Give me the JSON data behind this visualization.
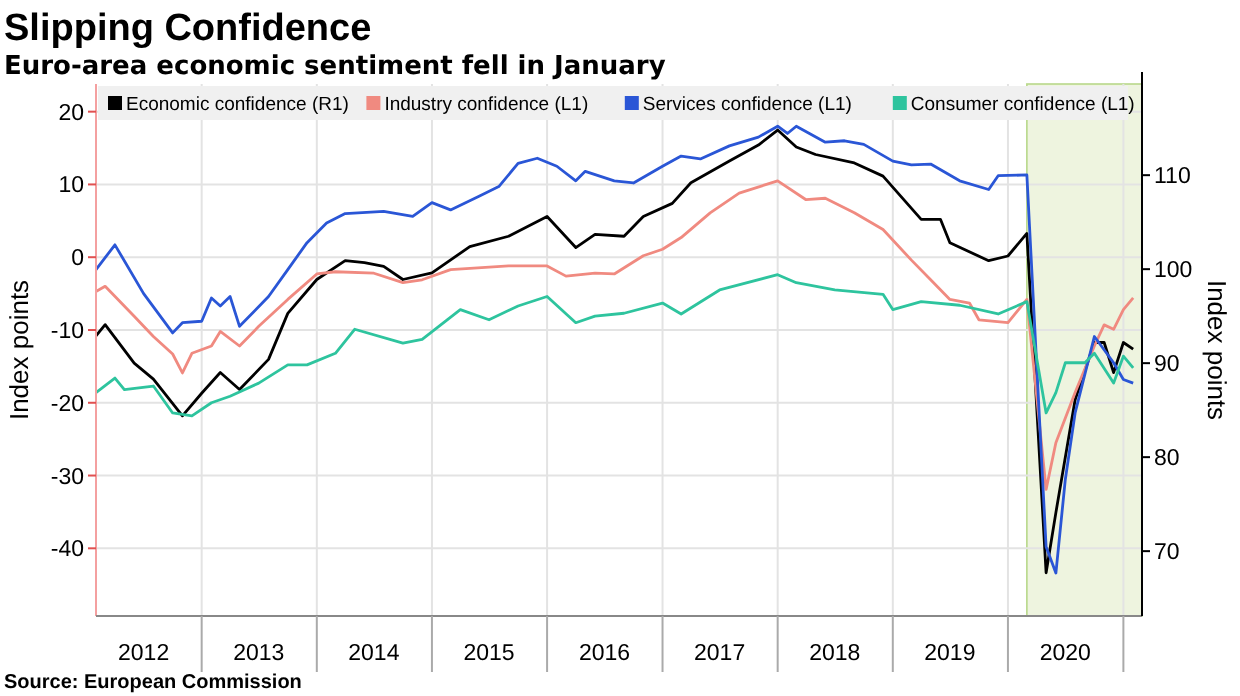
{
  "chart_data": {
    "type": "line",
    "title": "Slipping Confidence",
    "subtitle": "Euro-area economic sentiment fell in January",
    "ylabel": "Index points",
    "y2label": "Index points",
    "annotations": [
      "Source: European Commission"
    ],
    "xlim": [
      "2012-02-01",
      "2021-03-01"
    ],
    "xticks": [
      {
        "value": "2012-07-01",
        "label": "2012"
      },
      {
        "value": "2013-07-01",
        "label": "2013"
      },
      {
        "value": "2014-07-01",
        "label": "2014"
      },
      {
        "value": "2015-07-01",
        "label": "2015"
      },
      {
        "value": "2016-07-01",
        "label": "2016"
      },
      {
        "value": "2017-07-01",
        "label": "2017"
      },
      {
        "value": "2018-07-01",
        "label": "2018"
      },
      {
        "value": "2019-07-01",
        "label": "2019"
      },
      {
        "value": "2020-07-01",
        "label": "2020"
      }
    ],
    "ylim": [
      -49.3,
      23.8
    ],
    "yticks": [
      -40,
      -30,
      -20,
      -10,
      0,
      10,
      20
    ],
    "y2lim": [
      63.1,
      119.7
    ],
    "y2ticks": [
      70,
      80,
      90,
      100,
      110
    ],
    "grid": true,
    "legend": "top",
    "marker": "none",
    "line_style": "solid",
    "bands": [
      {
        "axis": "x",
        "from": "2020-03-01",
        "to": "2021-03-01",
        "color": "#eef4df"
      }
    ],
    "series": [
      {
        "name": "Economic confidence (R1)",
        "color": "#000000",
        "axis": "y2",
        "x": [
          "2012-02",
          "2012-03",
          "2012-06",
          "2012-08",
          "2012-11",
          "2013-01",
          "2013-03",
          "2013-05",
          "2013-08",
          "2013-10",
          "2014-01",
          "2014-04",
          "2014-06",
          "2014-08",
          "2014-10",
          "2015-01",
          "2015-05",
          "2015-09",
          "2016-01",
          "2016-04",
          "2016-06",
          "2016-09",
          "2016-11",
          "2017-02",
          "2017-04",
          "2017-08",
          "2017-11",
          "2018-01",
          "2018-03",
          "2018-05",
          "2018-09",
          "2018-12",
          "2019-04",
          "2019-06",
          "2019-07",
          "2019-11",
          "2020-01",
          "2020-03",
          "2020-05",
          "2020-06",
          "2020-08",
          "2020-10",
          "2020-11",
          "2020-12",
          "2021-01",
          "2021-02"
        ],
        "values": [
          92.9,
          94.1,
          90,
          88.3,
          84.4,
          86.8,
          89,
          87.2,
          90.4,
          95.3,
          98.9,
          100.9,
          100.7,
          100.3,
          98.9,
          99.6,
          102.4,
          103.5,
          105.6,
          102.3,
          103.7,
          103.5,
          105.6,
          107,
          109.2,
          111.5,
          113.2,
          114.8,
          113,
          112.2,
          111.3,
          109.9,
          105.3,
          105.3,
          102.8,
          100.9,
          101.4,
          103.8,
          67.7,
          74.1,
          86.1,
          92.2,
          92.2,
          89,
          92.2,
          91.5
        ]
      },
      {
        "name": "Industry confidence (L1)",
        "color": "#f08a80",
        "x": [
          "2012-02",
          "2012-03",
          "2012-06",
          "2012-08",
          "2012-10",
          "2012-11",
          "2012-12",
          "2013-02",
          "2013-03",
          "2013-05",
          "2013-07",
          "2013-10",
          "2014-01",
          "2014-03",
          "2014-07",
          "2014-10",
          "2014-12",
          "2015-03",
          "2015-09",
          "2016-01",
          "2016-03",
          "2016-06",
          "2016-08",
          "2016-11",
          "2017-01",
          "2017-03",
          "2017-06",
          "2017-09",
          "2018-01",
          "2018-04",
          "2018-06",
          "2018-09",
          "2018-12",
          "2019-03",
          "2019-05",
          "2019-07",
          "2019-09",
          "2019-10",
          "2020-01",
          "2020-03",
          "2020-05",
          "2020-06",
          "2020-08",
          "2020-10",
          "2020-11",
          "2020-12",
          "2021-01",
          "2021-02"
        ],
        "values": [
          -4.7,
          -4,
          -8.1,
          -10.9,
          -13.3,
          -15.9,
          -13.2,
          -12.2,
          -10.2,
          -12.2,
          -9.5,
          -5.8,
          -2.3,
          -2,
          -2.2,
          -3.5,
          -3.1,
          -1.7,
          -1.2,
          -1.2,
          -2.6,
          -2.2,
          -2.3,
          0.2,
          1.1,
          2.7,
          6.1,
          8.8,
          10.5,
          7.9,
          8.1,
          6.1,
          3.8,
          -0.4,
          -3.1,
          -5.8,
          -6.3,
          -8.6,
          -9,
          -5.8,
          -31.9,
          -25.5,
          -18.6,
          -12.2,
          -9.3,
          -9.9,
          -7.2,
          -5.6
        ]
      },
      {
        "name": "Services confidence  (L1)",
        "color": "#2a56d6",
        "x": [
          "2012-02",
          "2012-04",
          "2012-07",
          "2012-10",
          "2012-11",
          "2013-01",
          "2013-02",
          "2013-03",
          "2013-04",
          "2013-05",
          "2013-08",
          "2013-10",
          "2013-12",
          "2014-02",
          "2014-04",
          "2014-08",
          "2014-11",
          "2015-01",
          "2015-03",
          "2015-06",
          "2015-08",
          "2015-10",
          "2015-12",
          "2016-02",
          "2016-04",
          "2016-05",
          "2016-08",
          "2016-10",
          "2017-01",
          "2017-03",
          "2017-05",
          "2017-08",
          "2017-11",
          "2018-01",
          "2018-02",
          "2018-03",
          "2018-06",
          "2018-08",
          "2018-10",
          "2019-01",
          "2019-03",
          "2019-05",
          "2019-08",
          "2019-11",
          "2019-12",
          "2020-03",
          "2020-05",
          "2020-06",
          "2020-07",
          "2020-08",
          "2020-10",
          "2020-12",
          "2021-01",
          "2021-02"
        ],
        "values": [
          -1.7,
          1.7,
          -5,
          -10.4,
          -9,
          -8.8,
          -5.6,
          -6.7,
          -5.4,
          -9.5,
          -5.4,
          -1.7,
          2,
          4.7,
          6,
          6.3,
          5.6,
          7.5,
          6.5,
          8.4,
          9.7,
          12.9,
          13.6,
          12.5,
          10.5,
          11.8,
          10.5,
          10.2,
          12.5,
          13.9,
          13.5,
          15.3,
          16.5,
          18,
          17,
          18,
          15.8,
          16,
          15.5,
          13.2,
          12.7,
          12.8,
          10.5,
          9.3,
          11.2,
          11.3,
          -39.8,
          -43.4,
          -30.5,
          -21.4,
          -10.9,
          -14.5,
          -16.8,
          -17.3
        ]
      },
      {
        "name": "Consumer confidence  (L1)",
        "color": "#2ec49e",
        "x": [
          "2012-02",
          "2012-04",
          "2012-05",
          "2012-08",
          "2012-10",
          "2012-12",
          "2013-02",
          "2013-04",
          "2013-07",
          "2013-10",
          "2013-12",
          "2014-03",
          "2014-05",
          "2014-10",
          "2014-12",
          "2015-04",
          "2015-07",
          "2015-10",
          "2016-01",
          "2016-04",
          "2016-06",
          "2016-09",
          "2017-01",
          "2017-03",
          "2017-07",
          "2018-01",
          "2018-03",
          "2018-07",
          "2018-12",
          "2019-01",
          "2019-04",
          "2019-08",
          "2019-12",
          "2020-03",
          "2020-05",
          "2020-06",
          "2020-07",
          "2020-09",
          "2020-10",
          "2020-12",
          "2021-01",
          "2021-02"
        ],
        "values": [
          -18.6,
          -16.6,
          -18.2,
          -17.7,
          -21.4,
          -21.8,
          -20,
          -19.1,
          -17.3,
          -14.8,
          -14.8,
          -13.2,
          -9.9,
          -11.8,
          -11.3,
          -7.2,
          -8.6,
          -6.7,
          -5.4,
          -9,
          -8.1,
          -7.7,
          -6.3,
          -7.8,
          -4.5,
          -2.4,
          -3.5,
          -4.5,
          -5.1,
          -7.2,
          -6.1,
          -6.6,
          -7.8,
          -6.1,
          -21.4,
          -18.6,
          -14.5,
          -14.5,
          -13.2,
          -17.3,
          -13.6,
          -15.2
        ]
      }
    ]
  }
}
